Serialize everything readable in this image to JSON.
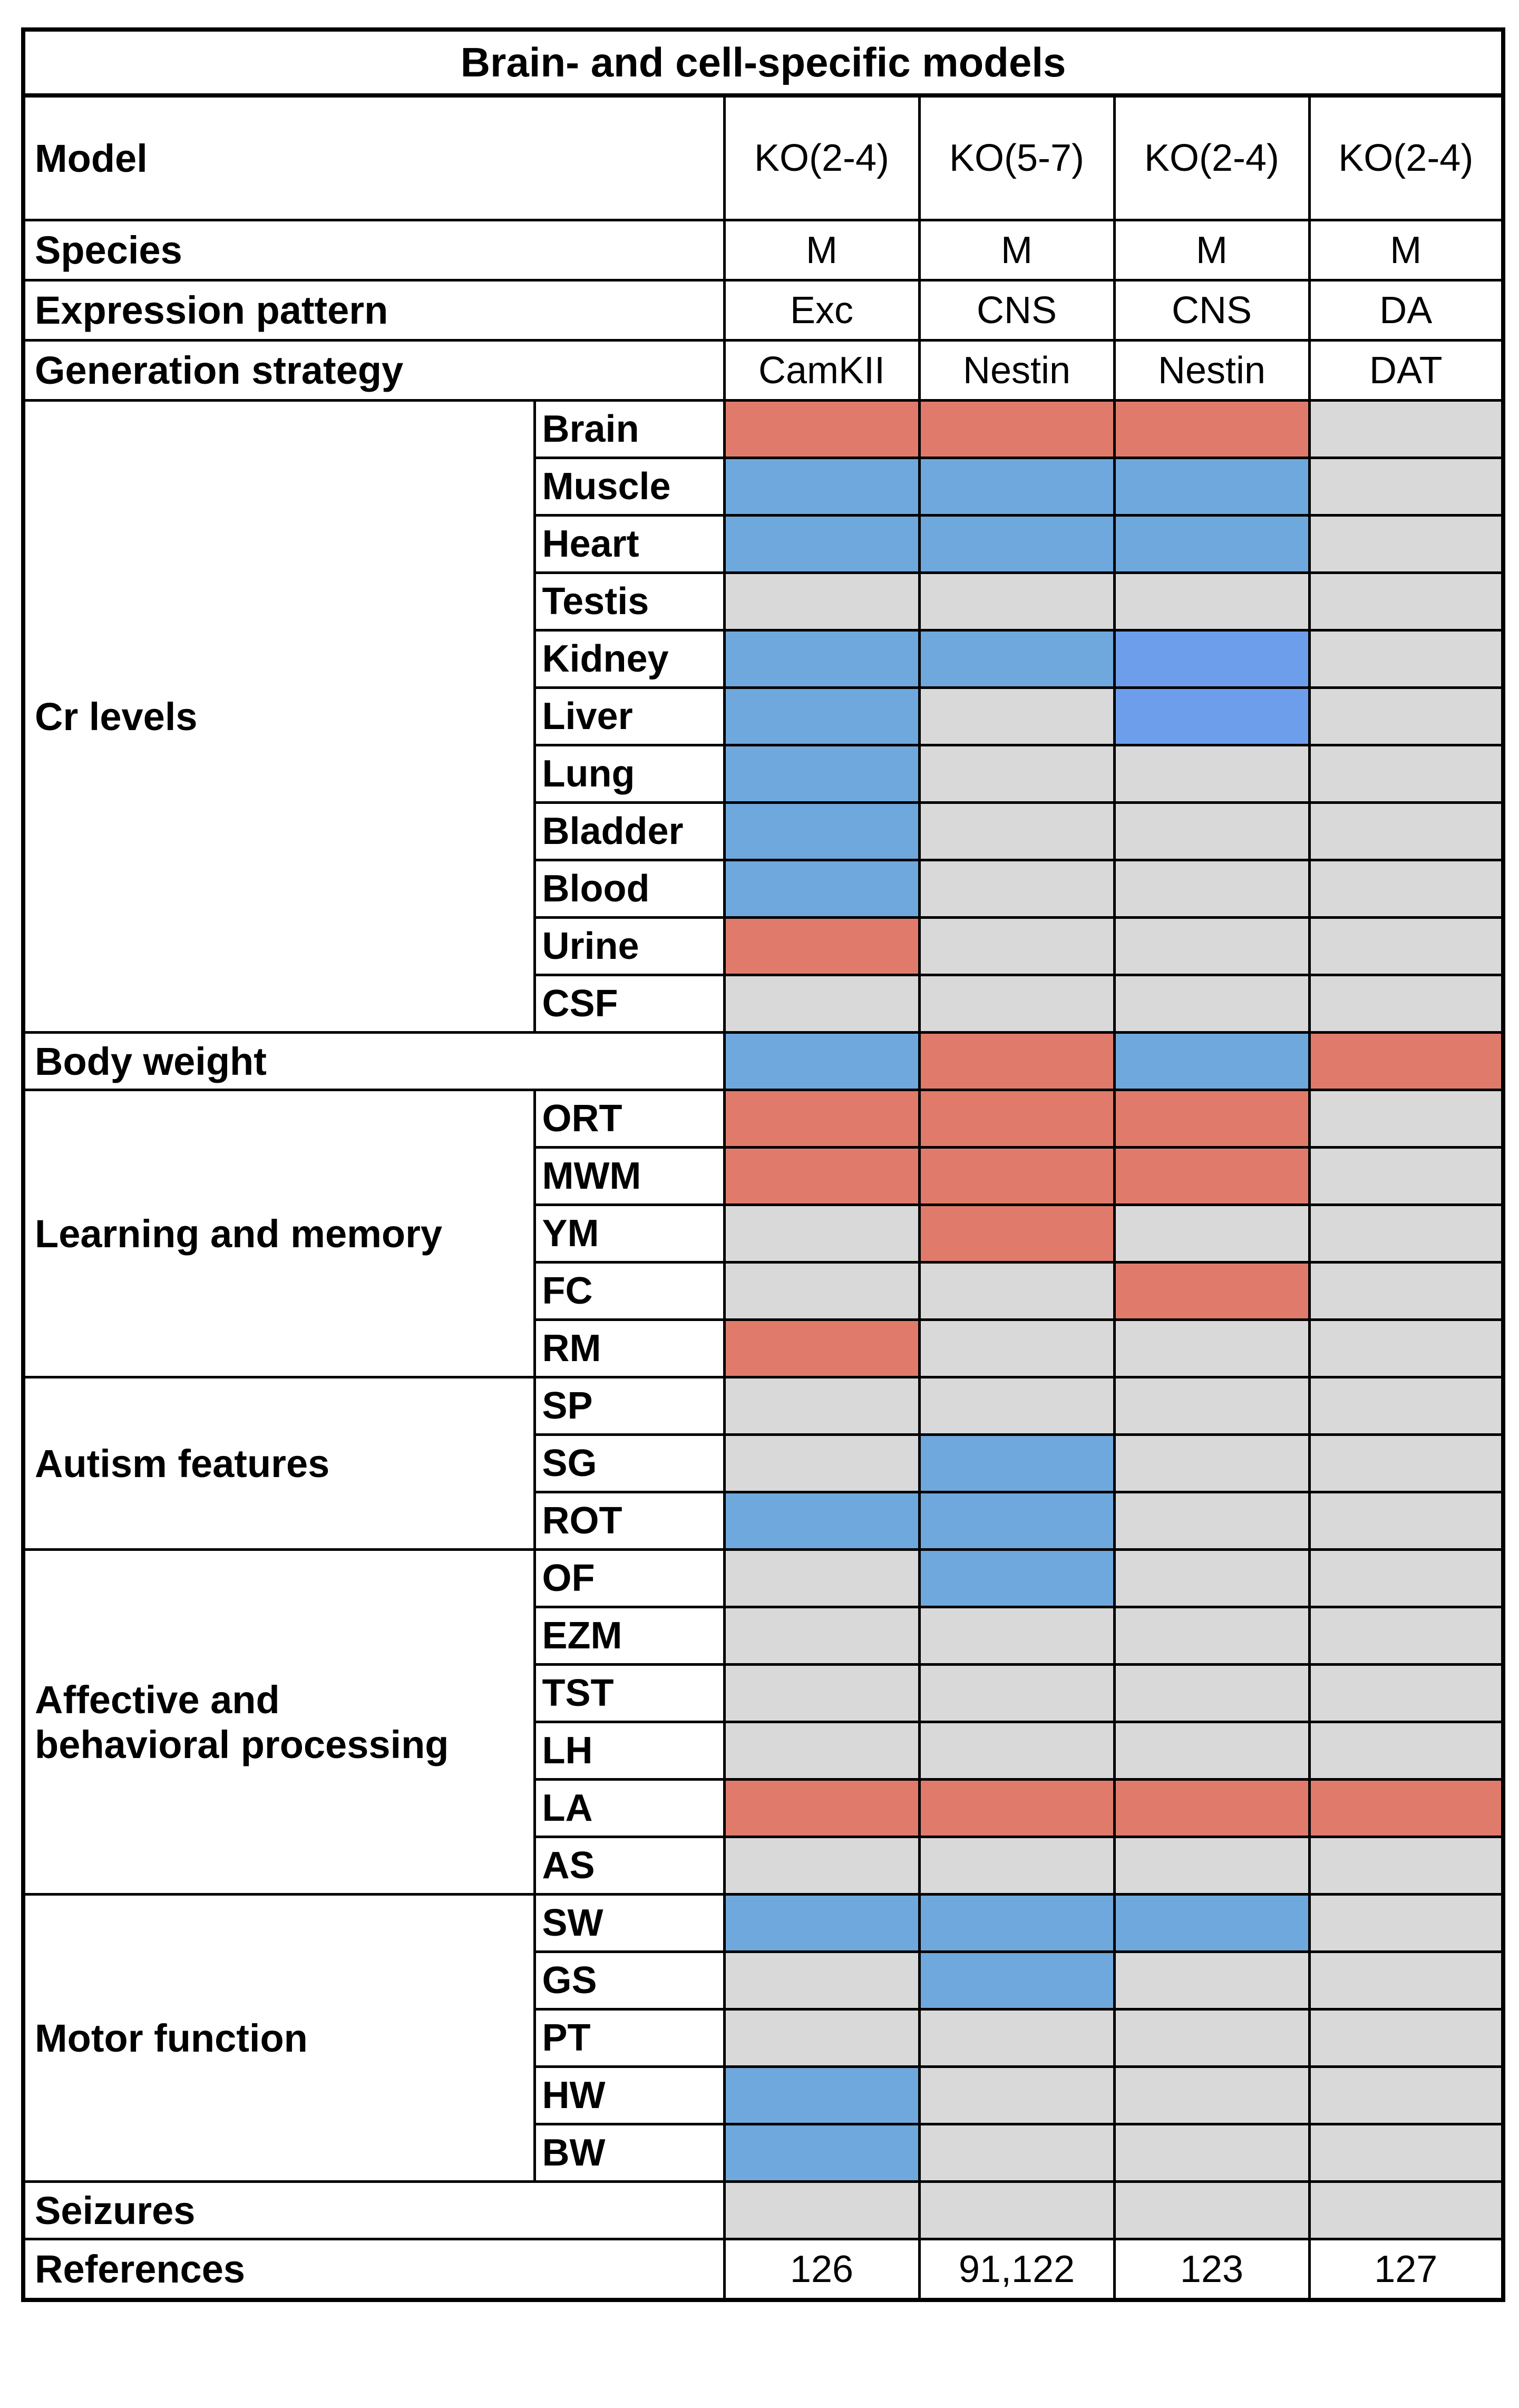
{
  "title": "Brain- and cell-specific models",
  "header": {
    "model_label": "Model",
    "species_label": "Species",
    "expression_label": "Expression pattern",
    "generation_label": "Generation strategy"
  },
  "models": [
    {
      "model": "KO(2-4)",
      "species": "M",
      "expression": "Exc",
      "strategy": "CamKII",
      "reference": "126"
    },
    {
      "model": "KO(5-7)",
      "species": "M",
      "expression": "CNS",
      "strategy": "Nestin",
      "reference": "91,122"
    },
    {
      "model": "KO(2-4)",
      "species": "M",
      "expression": "CNS",
      "strategy": "Nestin",
      "reference": "123"
    },
    {
      "model": "KO(2-4)",
      "species": "M",
      "expression": "DA",
      "strategy": "DAT",
      "reference": "127"
    }
  ],
  "groups": {
    "cr_levels": "Cr levels",
    "body_weight": "Body weight",
    "learning": "Learning and memory",
    "autism": "Autism features",
    "affective_line1": "Affective and",
    "affective_line2": "behavioral processing",
    "motor": "Motor function",
    "seizures": "Seizures",
    "references": "References"
  },
  "rows": [
    {
      "label": "Brain",
      "effects": [
        "increase",
        "increase",
        "increase",
        "none"
      ]
    },
    {
      "label": "Muscle",
      "effects": [
        "decrease",
        "decrease",
        "decrease",
        "none"
      ]
    },
    {
      "label": "Heart",
      "effects": [
        "decrease",
        "decrease",
        "decrease",
        "none"
      ]
    },
    {
      "label": "Testis",
      "effects": [
        "none",
        "none",
        "none",
        "none"
      ]
    },
    {
      "label": "Kidney",
      "effects": [
        "decrease",
        "decrease",
        "decrease",
        "none"
      ]
    },
    {
      "label": "Liver",
      "effects": [
        "decrease",
        "none",
        "decrease",
        "none"
      ]
    },
    {
      "label": "Lung",
      "effects": [
        "decrease",
        "none",
        "none",
        "none"
      ]
    },
    {
      "label": "Bladder",
      "effects": [
        "decrease",
        "none",
        "none",
        "none"
      ]
    },
    {
      "label": "Blood",
      "effects": [
        "decrease",
        "none",
        "none",
        "none"
      ]
    },
    {
      "label": "Urine",
      "effects": [
        "increase",
        "none",
        "none",
        "none"
      ]
    },
    {
      "label": "CSF",
      "effects": [
        "none",
        "none",
        "none",
        "none"
      ]
    },
    {
      "label": "",
      "effects": [
        "decrease",
        "increase",
        "decrease",
        "increase"
      ]
    },
    {
      "label": "ORT",
      "effects": [
        "increase",
        "increase",
        "increase",
        "none"
      ]
    },
    {
      "label": "MWM",
      "effects": [
        "increase",
        "increase",
        "increase",
        "none"
      ]
    },
    {
      "label": "YM",
      "effects": [
        "none",
        "increase",
        "none",
        "none"
      ]
    },
    {
      "label": "FC",
      "effects": [
        "none",
        "none",
        "increase",
        "none"
      ]
    },
    {
      "label": "RM",
      "effects": [
        "increase",
        "none",
        "none",
        "none"
      ]
    },
    {
      "label": "SP",
      "effects": [
        "none",
        "none",
        "none",
        "none"
      ]
    },
    {
      "label": "SG",
      "effects": [
        "none",
        "decrease",
        "none",
        "none"
      ]
    },
    {
      "label": "ROT",
      "effects": [
        "decrease",
        "decrease",
        "none",
        "none"
      ]
    },
    {
      "label": "OF",
      "effects": [
        "none",
        "decrease",
        "none",
        "none"
      ]
    },
    {
      "label": "EZM",
      "effects": [
        "none",
        "none",
        "none",
        "none"
      ]
    },
    {
      "label": "TST",
      "effects": [
        "none",
        "none",
        "none",
        "none"
      ]
    },
    {
      "label": "LH",
      "effects": [
        "none",
        "none",
        "none",
        "none"
      ]
    },
    {
      "label": "LA",
      "effects": [
        "increase",
        "increase",
        "increase",
        "increase"
      ]
    },
    {
      "label": "AS",
      "effects": [
        "none",
        "none",
        "none",
        "none"
      ]
    },
    {
      "label": "SW",
      "effects": [
        "decrease",
        "decrease",
        "decrease",
        "none"
      ]
    },
    {
      "label": "GS",
      "effects": [
        "none",
        "decrease",
        "none",
        "none"
      ]
    },
    {
      "label": "PT",
      "effects": [
        "none",
        "none",
        "none",
        "none"
      ]
    },
    {
      "label": "HW",
      "effects": [
        "decrease",
        "none",
        "none",
        "none"
      ]
    },
    {
      "label": "BW",
      "effects": [
        "decrease",
        "none",
        "none",
        "none"
      ]
    },
    {
      "label": "",
      "effects": [
        "none",
        "none",
        "none",
        "none"
      ]
    }
  ],
  "colors": {
    "increase": "#e07b6c",
    "decrease": "#6fa8dc",
    "decrease_alt": "#6d9eeb",
    "none": "#d9d9d9",
    "border": "#000000"
  }
}
